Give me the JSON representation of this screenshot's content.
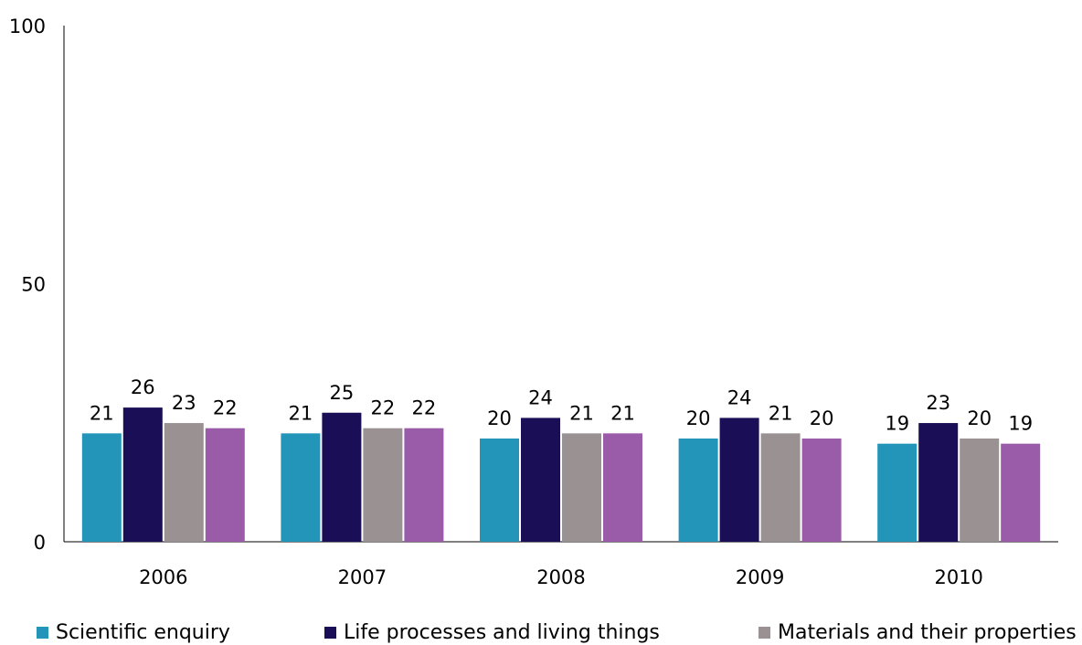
{
  "chart_data": {
    "type": "bar",
    "categories": [
      "2006",
      "2007",
      "2008",
      "2009",
      "2010"
    ],
    "series": [
      {
        "name": "Scientific enquiry",
        "color": "#2295b8",
        "values": [
          21,
          21,
          20,
          20,
          19
        ]
      },
      {
        "name": "Life processes and living things",
        "color": "#1a0f56",
        "values": [
          26,
          25,
          24,
          24,
          23
        ]
      },
      {
        "name": "Materials and their properties",
        "color": "#9a9292",
        "values": [
          23,
          22,
          21,
          21,
          20
        ]
      },
      {
        "name": "",
        "color": "#9a5ba8",
        "values": [
          22,
          22,
          21,
          20,
          19
        ]
      }
    ],
    "ylim": [
      0,
      100
    ],
    "yticks": [
      "0",
      "50",
      "100"
    ],
    "grid": false,
    "legend_position": "bottom"
  }
}
